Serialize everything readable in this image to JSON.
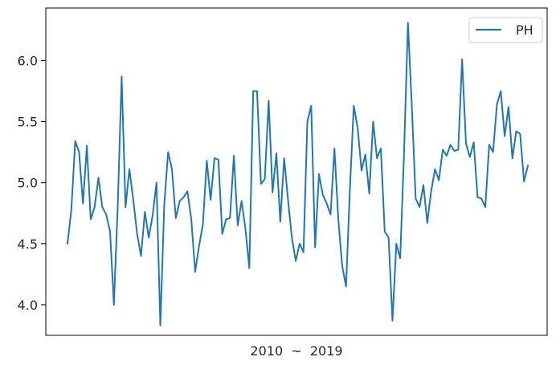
{
  "chart_data": {
    "type": "line",
    "title": "",
    "xlabel": "2010  ~  2019",
    "ylabel": "",
    "ylim": [
      3.75,
      6.43
    ],
    "yticks": [
      "4.0",
      "4.5",
      "5.0",
      "5.5",
      "6.0"
    ],
    "ytick_values": [
      4.0,
      4.5,
      5.0,
      5.5,
      6.0
    ],
    "grid": false,
    "legend_position": "top-right",
    "series": [
      {
        "name": "PH",
        "color": "#1f77b4",
        "values": [
          4.5,
          4.78,
          5.34,
          5.25,
          4.83,
          5.3,
          4.7,
          4.8,
          5.04,
          4.8,
          4.74,
          4.6,
          4.0,
          4.82,
          5.87,
          4.8,
          5.11,
          4.86,
          4.58,
          4.4,
          4.76,
          4.55,
          4.73,
          5.0,
          3.83,
          4.81,
          5.25,
          5.11,
          4.71,
          4.85,
          4.88,
          4.93,
          4.7,
          4.27,
          4.48,
          4.66,
          5.18,
          4.86,
          5.2,
          5.19,
          4.58,
          4.7,
          4.71,
          5.22,
          4.65,
          4.85,
          4.62,
          4.3,
          5.75,
          5.75,
          4.99,
          5.03,
          5.67,
          4.92,
          5.24,
          4.68,
          5.2,
          4.86,
          4.55,
          4.36,
          4.5,
          4.43,
          5.5,
          5.63,
          4.47,
          5.07,
          4.9,
          4.83,
          4.74,
          5.28,
          4.7,
          4.32,
          4.15,
          4.95,
          5.63,
          5.45,
          5.1,
          5.23,
          4.91,
          5.5,
          5.2,
          5.28,
          4.6,
          4.55,
          3.87,
          4.5,
          4.38,
          5.25,
          6.31,
          5.63,
          4.87,
          4.8,
          4.98,
          4.67,
          4.93,
          5.11,
          5.02,
          5.27,
          5.22,
          5.31,
          5.26,
          5.27,
          6.01,
          5.32,
          5.21,
          5.33,
          4.88,
          4.87,
          4.8,
          5.31,
          5.25,
          5.64,
          5.75,
          5.38,
          5.62,
          5.2,
          5.42,
          5.4,
          5.01,
          5.14
        ]
      }
    ]
  }
}
